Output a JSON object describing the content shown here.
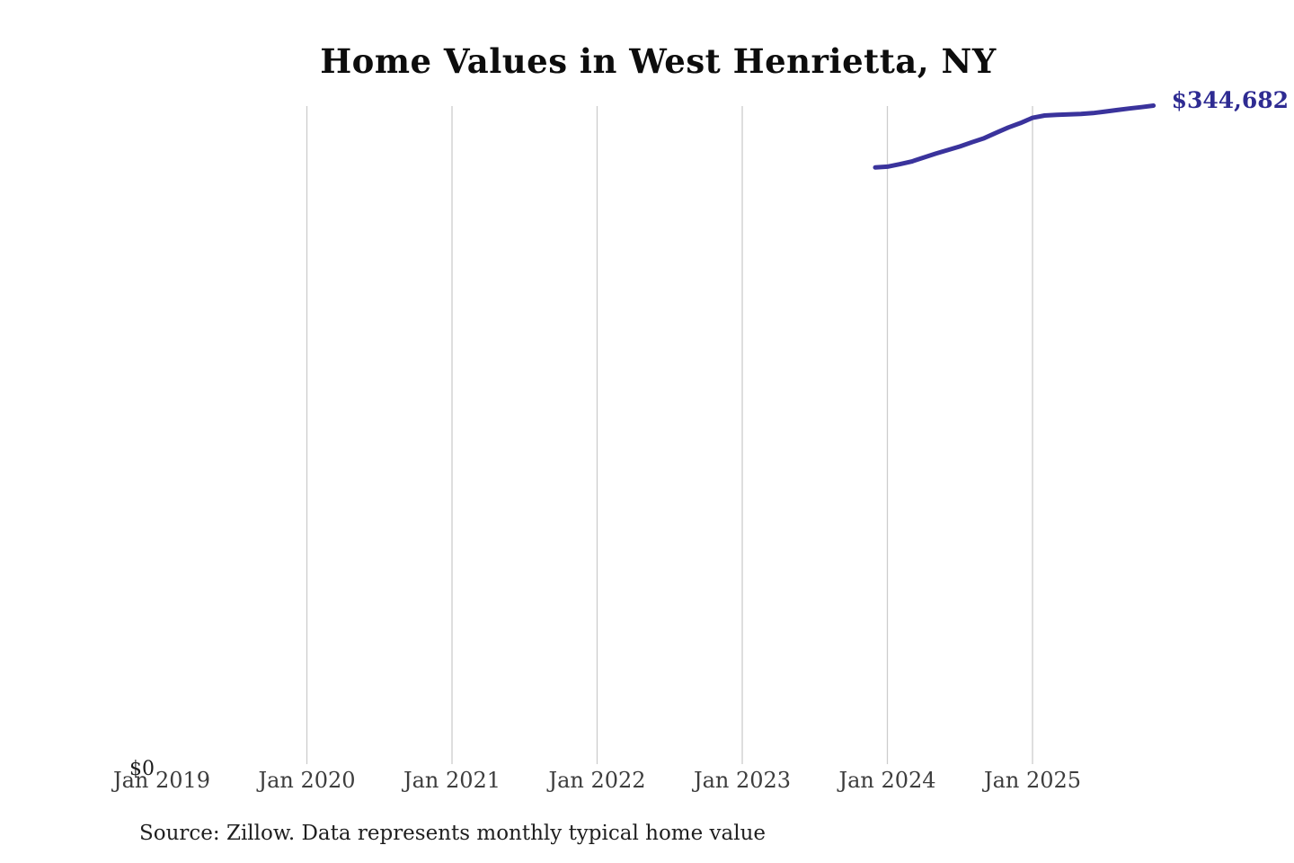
{
  "chart_data": {
    "type": "line",
    "title": "Home Values in West Henrietta, NY",
    "source": "Source: Zillow. Data represents monthly typical home value",
    "xlabel": "",
    "ylabel": "",
    "x_tick_labels": [
      "Jan 2019",
      "Jan 2020",
      "Jan 2021",
      "Jan 2022",
      "Jan 2023",
      "Jan 2024",
      "Jan 2025"
    ],
    "y_tick_labels": [
      "$0"
    ],
    "gridline_years": [
      2020,
      2021,
      2022,
      2023,
      2024,
      2025
    ],
    "xlim": [
      "2019-01",
      "2025-12"
    ],
    "ylim": [
      0,
      345000
    ],
    "grid": "vertical",
    "legend_position": "none",
    "annotation": {
      "label": "$344,682",
      "attached_to": "last-point"
    },
    "series": [
      {
        "name": "Monthly typical home value",
        "color": "#3a339c",
        "points": [
          [
            "2023-12",
            312400
          ],
          [
            "2024-01",
            312800
          ],
          [
            "2024-02",
            314100
          ],
          [
            "2024-03",
            315500
          ],
          [
            "2024-04",
            317600
          ],
          [
            "2024-05",
            319600
          ],
          [
            "2024-06",
            321500
          ],
          [
            "2024-07",
            323400
          ],
          [
            "2024-08",
            325600
          ],
          [
            "2024-09",
            327700
          ],
          [
            "2024-10",
            330500
          ],
          [
            "2024-11",
            333300
          ],
          [
            "2024-12",
            335600
          ],
          [
            "2025-01",
            338300
          ],
          [
            "2025-02",
            339500
          ],
          [
            "2025-03",
            339900
          ],
          [
            "2025-04",
            340100
          ],
          [
            "2025-05",
            340300
          ],
          [
            "2025-06",
            340800
          ],
          [
            "2025-07",
            341600
          ],
          [
            "2025-08",
            342400
          ],
          [
            "2025-09",
            343200
          ],
          [
            "2025-10",
            343900
          ],
          [
            "2025-11",
            344682
          ]
        ]
      }
    ],
    "colors": {
      "line": "#3a339c",
      "annotation": "#2e2b92",
      "gridline": "#cccccc",
      "tick_label": "#3d3d3d",
      "text": "#1c1c1c"
    }
  }
}
